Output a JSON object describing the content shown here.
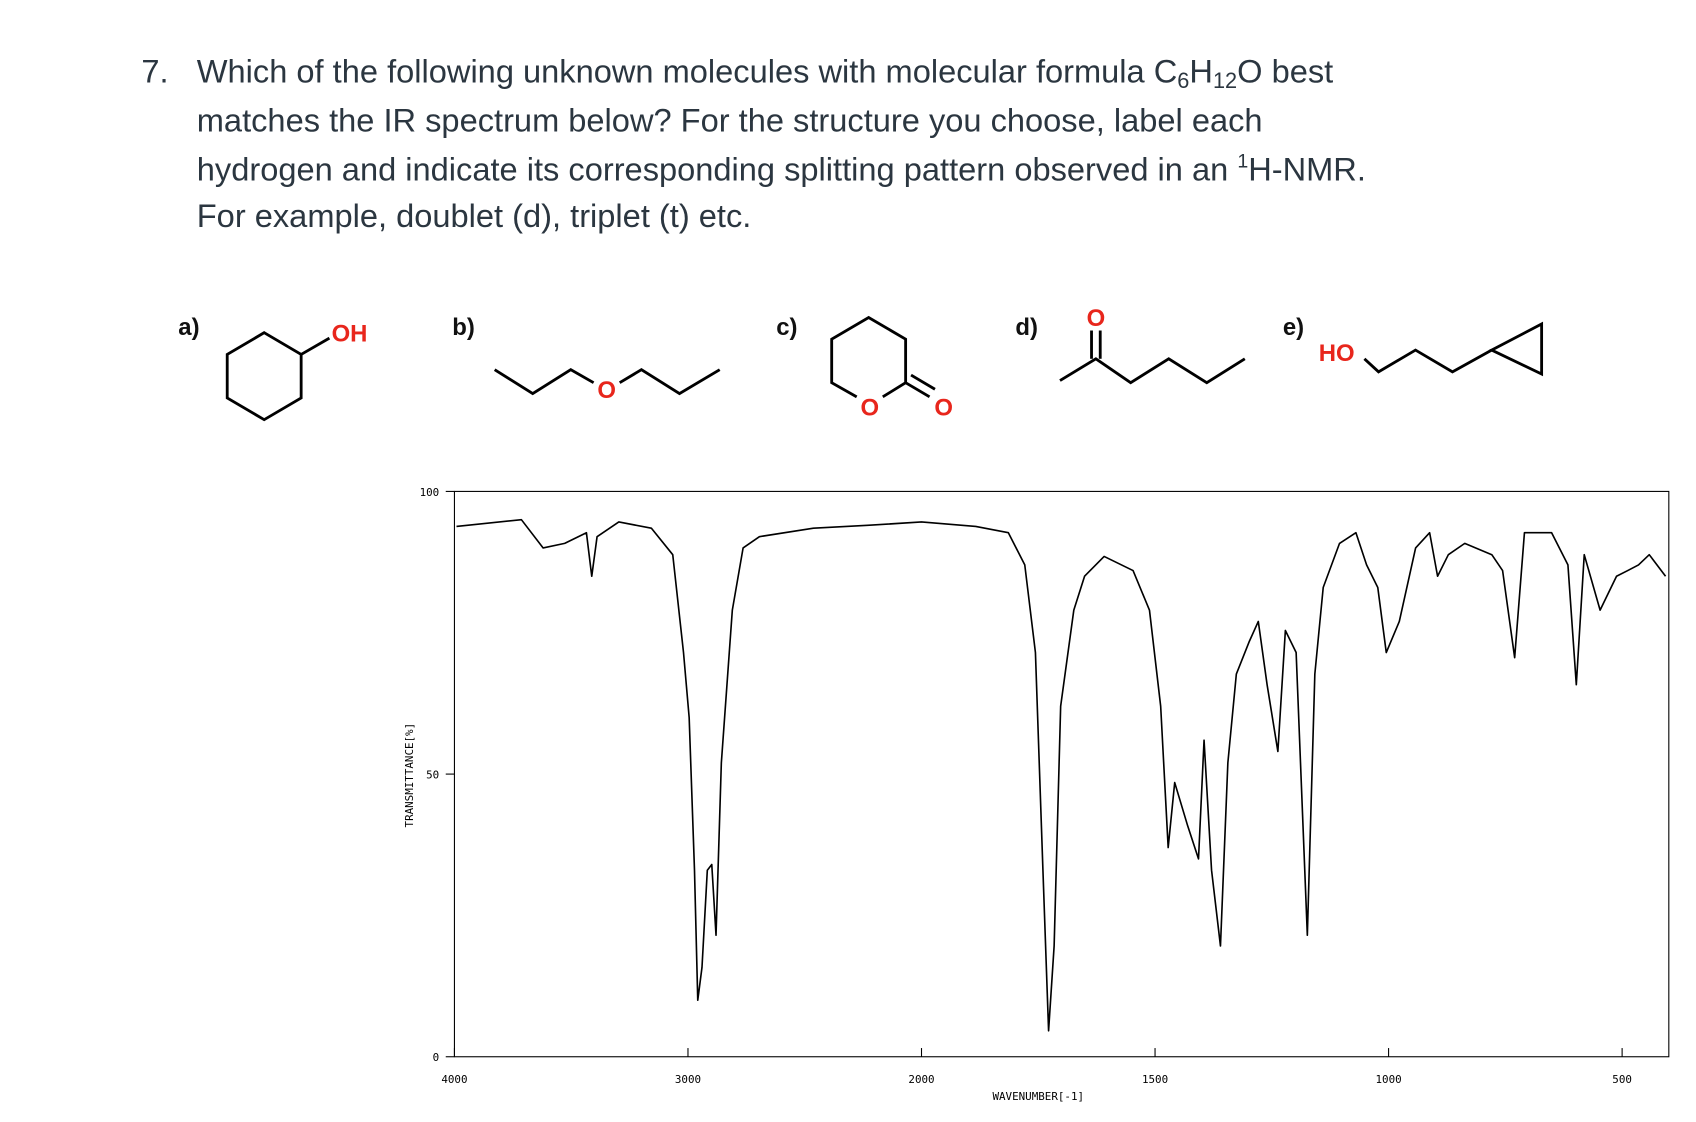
{
  "question": {
    "number": "7.",
    "lines": [
      [
        "Which of the following unknown molecules with molecular formula C",
        "6",
        "H",
        "12",
        "O best"
      ],
      [
        "matches the IR spectrum below?  For the structure you choose, label each"
      ],
      [
        "hydrogen and indicate its corresponding splitting pattern observed in an ",
        "1",
        "H-NMR."
      ],
      [
        "For example, doublet (d), triplet (t) etc."
      ]
    ]
  },
  "options": [
    {
      "label": "a)",
      "atoms": [
        "OH"
      ]
    },
    {
      "label": "b)",
      "atoms": [
        "O"
      ]
    },
    {
      "label": "c)",
      "atoms": [
        "O",
        "O"
      ]
    },
    {
      "label": "d)",
      "atoms": [
        "O"
      ]
    },
    {
      "label": "e)",
      "atoms": [
        "HO"
      ]
    }
  ],
  "chart_data": {
    "type": "line",
    "x_label": "WAVENUMBER[-1]",
    "y_label": "TRANSMITTANCE[%]",
    "color": "#000000",
    "xlim": [
      4000,
      400
    ],
    "x_scale": {
      "break": 2000,
      "factor": 2
    },
    "xticks": [
      4000,
      3000,
      2000,
      1500,
      1000,
      500
    ],
    "ylim": [
      0,
      100
    ],
    "yticks": [
      {
        "value": 100,
        "label": "100"
      },
      50,
      0
    ],
    "x": [
      3991,
      3713,
      3620,
      3528,
      3435,
      3412,
      3389,
      3296,
      3157,
      3065,
      3019,
      2995,
      2972,
      2958,
      2940,
      2917,
      2898,
      2880,
      2857,
      2810,
      2764,
      2694,
      2463,
      2231,
      2000,
      1884,
      1814,
      1779,
      1756,
      1740,
      1728,
      1716,
      1702,
      1674,
      1651,
      1609,
      1547,
      1512,
      1488,
      1472,
      1458,
      1430,
      1407,
      1395,
      1379,
      1360,
      1344,
      1326,
      1298,
      1279,
      1260,
      1237,
      1221,
      1198,
      1174,
      1158,
      1140,
      1105,
      1070,
      1047,
      1023,
      1005,
      977,
      942,
      912,
      895,
      872,
      837,
      779,
      756,
      730,
      709,
      651,
      616,
      598,
      581,
      547,
      512,
      488,
      465,
      442,
      407
    ],
    "values": [
      93.8,
      95,
      90,
      90.8,
      92.7,
      85,
      92,
      94.6,
      93.5,
      88.8,
      71.5,
      60,
      33,
      10,
      15.8,
      33,
      34,
      21.5,
      52,
      79,
      90,
      92,
      93.5,
      94,
      94.6,
      93.8,
      92.7,
      87,
      71.5,
      33,
      4.6,
      19.6,
      62,
      79,
      85,
      88.5,
      86,
      79,
      62,
      37,
      48.5,
      40.8,
      35,
      56,
      33,
      19.6,
      52,
      67.7,
      73.5,
      77,
      65.8,
      54,
      75.4,
      71.5,
      21.5,
      67.7,
      83,
      90.8,
      92.7,
      87,
      83,
      71.5,
      77,
      90,
      92.7,
      85,
      88.8,
      90.8,
      88.8,
      86,
      70.6,
      92.7,
      92.7,
      87,
      65.8,
      88.8,
      79,
      85,
      86,
      87,
      88.8,
      85
    ]
  }
}
